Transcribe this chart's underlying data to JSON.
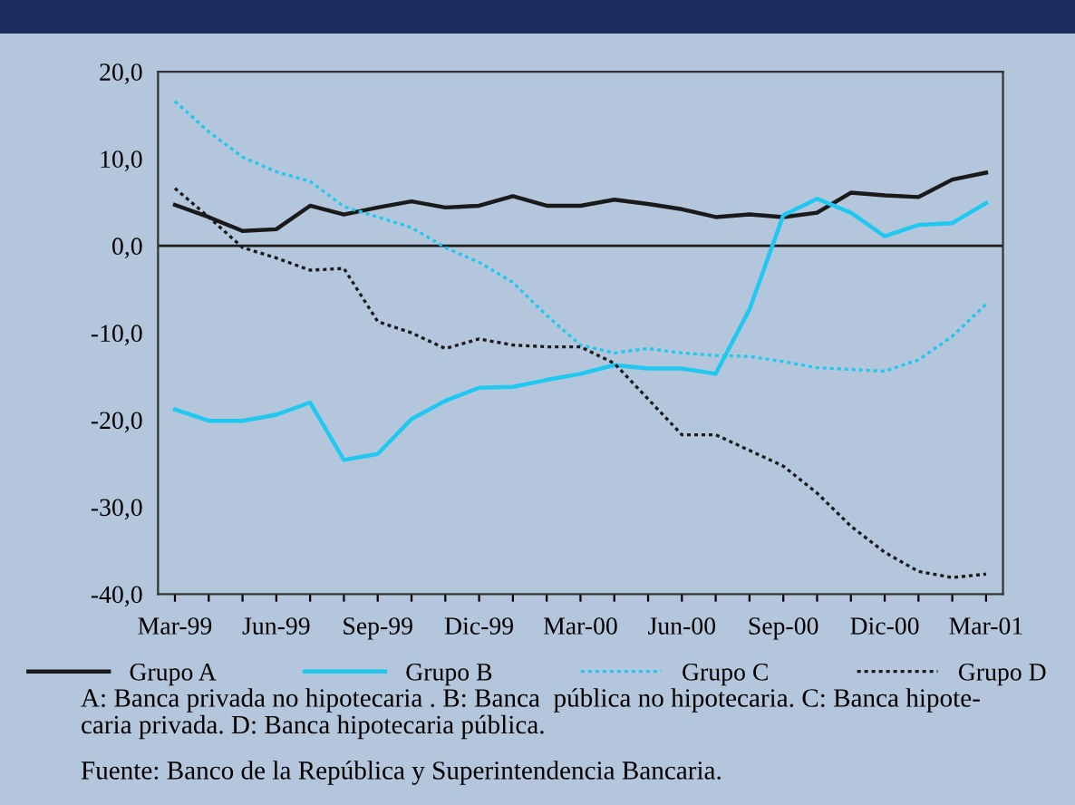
{
  "chart_data": {
    "type": "line",
    "categories": [
      "Mar-99",
      null,
      null,
      "Jun-99",
      null,
      null,
      "Sep-99",
      null,
      null,
      "Dic-99",
      null,
      null,
      "Mar-00",
      null,
      null,
      "Jun-00",
      null,
      null,
      "Sep-00",
      null,
      null,
      "Dic-00",
      null,
      null,
      "Mar-01"
    ],
    "series": [
      {
        "name": "Grupo A",
        "color": "#1a1a1a",
        "line_style": "solid",
        "values": [
          4.7,
          3.3,
          1.7,
          1.9,
          4.6,
          3.6,
          4.4,
          5.1,
          4.4,
          4.6,
          5.7,
          4.6,
          4.6,
          5.3,
          4.8,
          4.2,
          3.3,
          3.6,
          3.3,
          3.8,
          6.1,
          5.8,
          5.6,
          7.6,
          8.4
        ]
      },
      {
        "name": "Grupo B",
        "color": "#1ec8f0",
        "line_style": "solid",
        "values": [
          -18.8,
          -20.1,
          -20.1,
          -19.4,
          -18.0,
          -24.6,
          -23.9,
          -19.9,
          -17.8,
          -16.3,
          -16.2,
          -15.4,
          -14.7,
          -13.7,
          -14.1,
          -14.1,
          -14.7,
          -7.3,
          3.5,
          5.4,
          3.8,
          1.1,
          2.4,
          2.6,
          4.9
        ]
      },
      {
        "name": "Grupo C",
        "color": "#1ec8f0",
        "line_style": "dotted",
        "values": [
          16.6,
          13.1,
          10.2,
          8.5,
          7.4,
          4.5,
          3.3,
          2.1,
          -0.2,
          -1.9,
          -4.2,
          -8.0,
          -11.4,
          -12.3,
          -11.8,
          -12.3,
          -12.6,
          -12.7,
          -13.3,
          -14.0,
          -14.2,
          -14.4,
          -13.1,
          -10.4,
          -6.7
        ]
      },
      {
        "name": "Grupo D",
        "color": "#1a1a1a",
        "line_style": "dotted",
        "values": [
          6.6,
          3.3,
          -0.2,
          -1.4,
          -2.8,
          -2.6,
          -8.7,
          -10.0,
          -11.8,
          -10.7,
          -11.4,
          -11.6,
          -11.6,
          -13.5,
          -17.6,
          -21.7,
          -21.7,
          -23.5,
          -25.3,
          -28.4,
          -32.2,
          -35.2,
          -37.4,
          -38.1,
          -37.7
        ]
      }
    ],
    "ylim": [
      -40,
      20
    ],
    "yticks": [
      {
        "value": -40,
        "label": "-40,0"
      },
      {
        "value": -30,
        "label": "-30,0"
      },
      {
        "value": -20,
        "label": "-20,0"
      },
      {
        "value": -10,
        "label": "-10,0"
      },
      {
        "value": 0,
        "label": "0,0"
      },
      {
        "value": 10,
        "label": "10,0"
      },
      {
        "value": 20,
        "label": "20,0"
      }
    ],
    "ref_lines": [
      {
        "axis": "y",
        "value": 0,
        "color": "#1a1a1a",
        "line_style": "solid"
      }
    ],
    "grid": false,
    "legend": "bottom",
    "marker": "none",
    "annotations": [
      "A: Banca privada no hipotecaria . B: Banca  pública no hipotecaria. C: Banca hipote-\ncaria privada. D: Banca hipotecaria pública.",
      "Fuente: Banco de la República y Superintendencia Bancaria."
    ]
  }
}
